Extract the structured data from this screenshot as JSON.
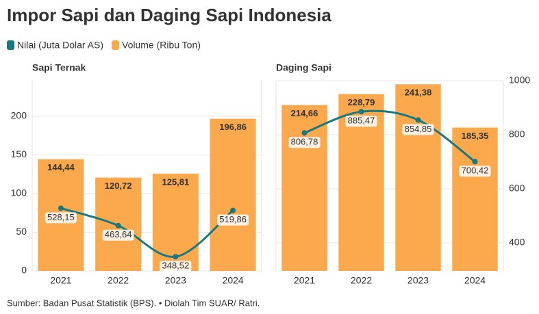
{
  "title": "Impor Sapi dan Daging Sapi Indonesia",
  "source": "Sumber: Badan Pusat Statistik (BPS). • Diolah Tim SUAR/ Ratri.",
  "chart_data": [
    {
      "type": "bar",
      "title": "Sapi Ternak",
      "categories": [
        "2021",
        "2022",
        "2023",
        "2024"
      ],
      "series": [
        {
          "name": "Nilai (Juta Dolar AS)",
          "color": "#167a80",
          "axis": "y2",
          "values": [
            528.15,
            463.64,
            348.52,
            519.86
          ],
          "value_labels": [
            "528,15",
            "463,64",
            "348,52",
            "519,86"
          ]
        },
        {
          "name": "Volume (Ribu Ton)",
          "color": "#fba94c",
          "values": [
            144.44,
            120.72,
            125.81,
            196.86
          ],
          "value_labels": [
            "144,44",
            "120,72",
            "125,81",
            "196,86"
          ]
        }
      ],
      "ylim": [
        0,
        246
      ],
      "yticks": [
        0,
        50,
        100,
        150,
        200
      ],
      "y2lim": [
        296,
        1000
      ],
      "grid": true
    },
    {
      "type": "bar",
      "title": "Daging Sapi",
      "categories": [
        "2021",
        "2022",
        "2023",
        "2024"
      ],
      "series": [
        {
          "name": "Nilai (Juta Dolar AS)",
          "color": "#167a80",
          "axis": "y2",
          "values": [
            806.78,
            885.47,
            854.85,
            700.42
          ],
          "value_labels": [
            "806,78",
            "885,47",
            "854,85",
            "700,42"
          ]
        },
        {
          "name": "Volume (Ribu Ton)",
          "color": "#fba94c",
          "values": [
            214.66,
            228.79,
            241.38,
            185.35
          ],
          "value_labels": [
            "214,66",
            "228,79",
            "241,38",
            "185,35"
          ]
        }
      ],
      "ylim": [
        0,
        246
      ],
      "y2lim": [
        296,
        1000
      ],
      "y2ticks": [
        400,
        600,
        800,
        1000
      ],
      "grid": true
    }
  ]
}
